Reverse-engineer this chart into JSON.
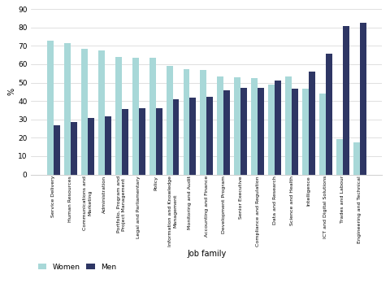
{
  "categories": [
    "Service Delivery",
    "Human Resources",
    "Communications and\nMarketing",
    "Administration",
    "Portfolio, Program and\nProject Management",
    "Legal and Parliamentary",
    "Policy",
    "Information and Knowledge\nManagement",
    "Monitoring and Audit",
    "Accounting and Finance",
    "Development Program",
    "Senior Executive",
    "Compliance and Regulation",
    "Data and Research",
    "Science and Health",
    "Intelligence",
    "ICT and Digital Solutions",
    "Trades and Labour",
    "Engineering and Technical"
  ],
  "women": [
    72.6,
    71.5,
    68.5,
    67.5,
    64.0,
    63.5,
    63.5,
    59.0,
    57.5,
    57.0,
    53.5,
    53.0,
    52.5,
    49.0,
    53.5,
    46.5,
    44.0,
    19.1,
    17.4
  ],
  "men": [
    27.0,
    28.5,
    31.0,
    31.5,
    35.5,
    36.0,
    36.0,
    41.0,
    42.0,
    42.5,
    46.0,
    47.0,
    47.0,
    51.0,
    46.5,
    56.0,
    65.6,
    80.9,
    82.6
  ],
  "women_color": "#a8d8d8",
  "men_color": "#2e3664",
  "xlabel": "Job family",
  "ylabel": "%",
  "ylim": [
    0,
    90
  ],
  "yticks": [
    0,
    10,
    20,
    30,
    40,
    50,
    60,
    70,
    80,
    90
  ],
  "bar_width": 0.38,
  "figsize": [
    4.8,
    3.7
  ],
  "dpi": 100
}
